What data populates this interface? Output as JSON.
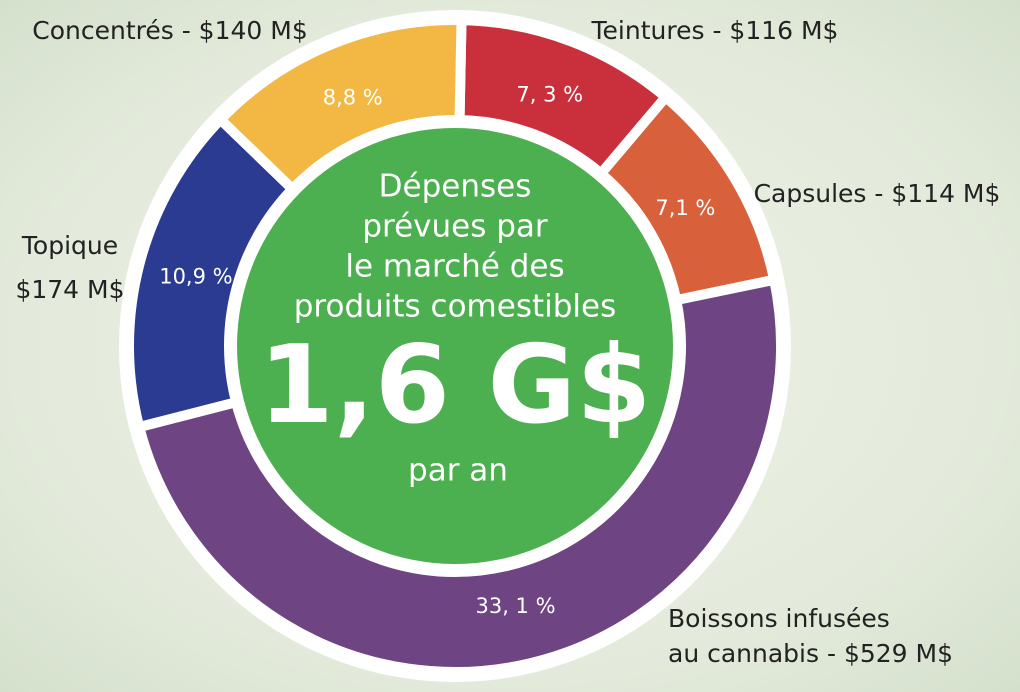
{
  "chart_data": {
    "type": "donut",
    "categories": [
      [
        "Teintures - $116 M$"
      ],
      [
        "Capsules - $114 M$"
      ],
      [
        "Boissons infusées",
        "au cannabis  - $529 M$"
      ],
      [
        "Topique",
        "$174 M$"
      ],
      [
        "Concentrés - $140 M$"
      ]
    ],
    "values": [
      7.3,
      7.1,
      33.1,
      10.9,
      8.8
    ],
    "value_labels": [
      "7, 3 %",
      "7,1 %",
      "33, 1 %",
      "10,9 %",
      "8,8 %"
    ],
    "colors": [
      "#c9303c",
      "#d8603a",
      "#6e4482",
      "#2a3b91",
      "#f2b843"
    ],
    "center": {
      "lines": [
        "Dépenses",
        "prévues par",
        "le marché des",
        "produits comestibles"
      ],
      "total": "1,6 G$",
      "unit": "par an"
    }
  }
}
